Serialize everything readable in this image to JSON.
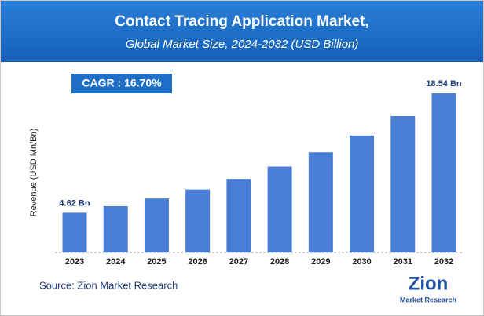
{
  "chart_data": {
    "type": "bar",
    "title": "Contact Tracing Application Market,",
    "subtitle": "Global Market Size, 2024-2032 (USD Billion)",
    "y_label": "Revenue (USD Mn/Bn)",
    "annotation": "CAGR : 16.70%",
    "source": "Source: Zion Market Research",
    "logo": {
      "name": "Zion",
      "tagline": "Market Research"
    },
    "categories": [
      "2023",
      "2024",
      "2025",
      "2026",
      "2027",
      "2028",
      "2029",
      "2030",
      "2031",
      "2032"
    ],
    "values": [
      4.62,
      5.39,
      6.29,
      7.34,
      8.57,
      10.0,
      11.67,
      13.62,
      15.89,
      18.54
    ],
    "value_labels": [
      "4.62 Bn",
      null,
      null,
      null,
      null,
      null,
      null,
      null,
      null,
      "18.54 Bn"
    ],
    "color": "#4a7dd6"
  }
}
